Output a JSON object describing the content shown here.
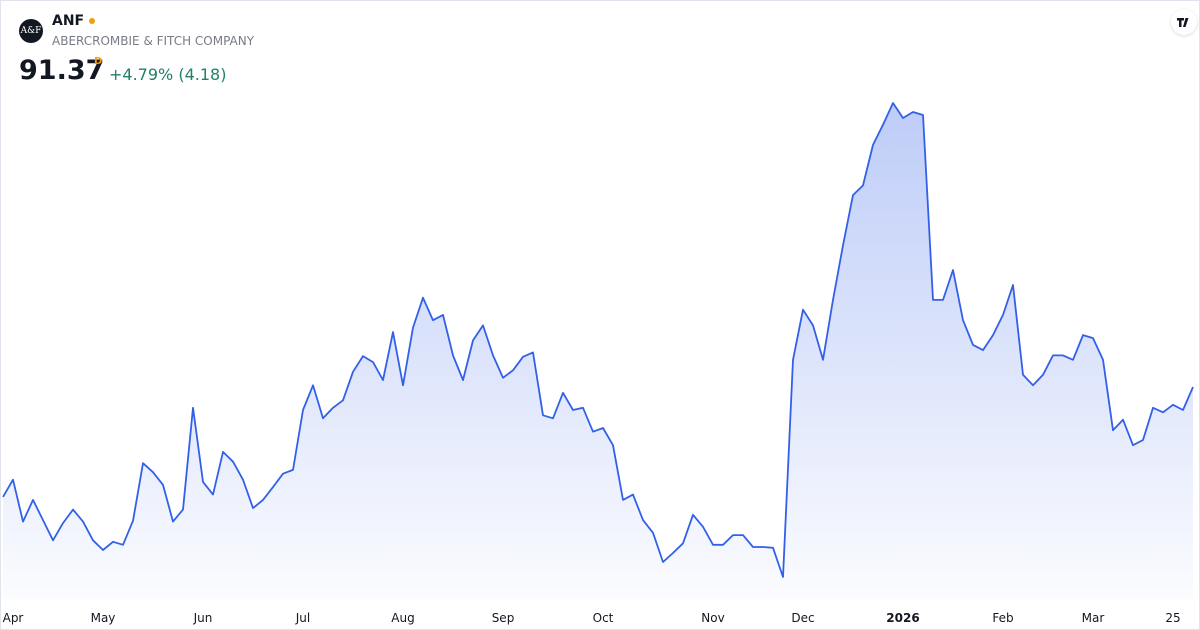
{
  "chart_data": {
    "type": "area",
    "logo": "A&F",
    "symbol": "ANF",
    "name": "ABERCROMBIE & FITCH COMPANY",
    "price": 91.37,
    "interval": "D",
    "change": "+4.79% (4.18)",
    "categories": [
      null,
      "Apr",
      null,
      null,
      null,
      null,
      null,
      null,
      null,
      null,
      "May",
      null,
      null,
      null,
      null,
      null,
      null,
      null,
      null,
      null,
      "Jun",
      null,
      null,
      null,
      null,
      null,
      null,
      null,
      null,
      null,
      "Jul",
      null,
      null,
      null,
      null,
      null,
      null,
      null,
      null,
      null,
      "Aug",
      null,
      null,
      null,
      null,
      null,
      null,
      null,
      null,
      null,
      "Sep",
      null,
      null,
      null,
      null,
      null,
      null,
      null,
      null,
      null,
      "Oct",
      null,
      null,
      null,
      null,
      null,
      null,
      null,
      null,
      null,
      null,
      "Nov",
      null,
      null,
      null,
      null,
      null,
      null,
      null,
      null,
      "Dec",
      null,
      null,
      null,
      null,
      null,
      null,
      null,
      null,
      null,
      "2026",
      null,
      null,
      null,
      null,
      null,
      null,
      null,
      null,
      null,
      "Feb",
      null,
      null,
      null,
      null,
      null,
      null,
      null,
      null,
      "Mar",
      null,
      null,
      null,
      null,
      null,
      null,
      null,
      "25",
      null,
      null
    ],
    "series": [
      {
        "color": "#3360e8",
        "values": [
          76.7,
          79.0,
          73.4,
          76.3,
          73.6,
          70.9,
          73.2,
          75.0,
          73.4,
          70.9,
          69.6,
          70.7,
          70.3,
          73.5,
          81.2,
          80.0,
          78.3,
          73.4,
          75.0,
          88.6,
          78.7,
          77.0,
          82.7,
          81.4,
          79.0,
          75.2,
          76.3,
          78.0,
          79.8,
          80.3,
          88.3,
          91.6,
          87.2,
          88.6,
          89.6,
          93.4,
          95.5,
          94.7,
          92.3,
          98.7,
          91.6,
          99.3,
          103.3,
          100.3,
          101.0,
          95.6,
          92.3,
          97.6,
          99.6,
          95.6,
          92.6,
          93.6,
          95.4,
          96.0,
          87.6,
          87.2,
          90.6,
          88.3,
          88.6,
          85.4,
          85.9,
          83.6,
          76.3,
          77.0,
          73.6,
          71.9,
          68.0,
          69.2,
          70.5,
          74.3,
          72.7,
          70.3,
          70.3,
          71.6,
          71.6,
          70.0,
          70.0,
          69.9,
          66.0,
          95.0,
          101.7,
          99.6,
          95.0,
          103.0,
          110.3,
          117.0,
          118.3,
          123.7,
          126.4,
          129.3,
          127.3,
          128.1,
          127.7,
          103.0,
          103.0,
          107.0,
          100.3,
          97.0,
          96.3,
          98.3,
          101.0,
          105.0,
          93.0,
          91.6,
          93.0,
          95.6,
          95.6,
          95.0,
          98.3,
          97.9,
          95.0,
          85.6,
          87.0,
          83.6,
          84.3,
          88.6,
          88.0,
          89.0,
          88.3,
          91.37
        ]
      }
    ],
    "change_color": "#22806b",
    "interval_color": "#f59e0b"
  }
}
